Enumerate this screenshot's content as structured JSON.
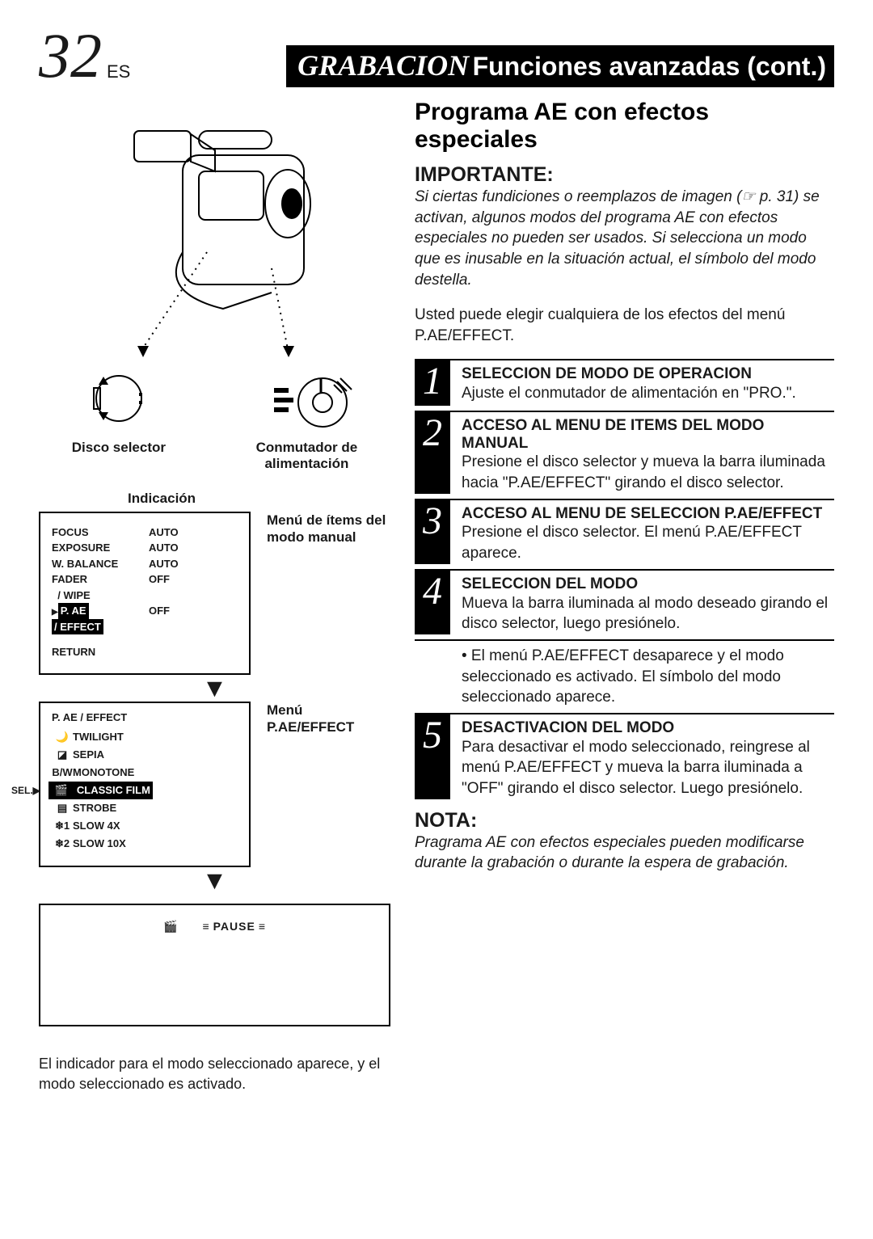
{
  "header": {
    "page_number": "32",
    "lang": "ES",
    "title_italic": "GRABACION",
    "title_bold": "Funciones avanzadas (cont.)"
  },
  "left": {
    "disco_label": "Disco selector",
    "conmutador_label": "Conmutador de\nalimentación",
    "indicacion": "Indicación",
    "manual_menu_label": "Menú de ítems del modo manual",
    "effect_menu_label": "Menú P.AE/EFFECT",
    "manual_menu": {
      "rows": [
        {
          "name": "FOCUS",
          "value": "AUTO"
        },
        {
          "name": "EXPOSURE",
          "value": "AUTO"
        },
        {
          "name": "W. BALANCE",
          "value": "AUTO"
        },
        {
          "name": "FADER / WIPE",
          "value": "OFF"
        },
        {
          "name": "P. AE / EFFECT",
          "value": "OFF",
          "highlight": true
        }
      ],
      "return": "RETURN"
    },
    "effect_menu": {
      "head": "P. AE / EFFECT",
      "sel_label": "SEL.",
      "rows": [
        {
          "icon": "🌙",
          "name": "TWILIGHT"
        },
        {
          "icon": "◪",
          "name": "SEPIA"
        },
        {
          "icon": "B/W",
          "name": "MONOTONE"
        },
        {
          "icon": "🎬",
          "name": "CLASSIC FILM",
          "selected": true
        },
        {
          "icon": "▤",
          "name": "STROBE"
        },
        {
          "icon": "❄1",
          "name": "SLOW 4X"
        },
        {
          "icon": "❄2",
          "name": "SLOW 10X"
        }
      ]
    },
    "pause": "PAUSE",
    "footnote": "El indicador para el modo seleccionado aparece, y el modo seleccionado es activado."
  },
  "right": {
    "section_title": "Programa AE con efectos especiales",
    "import_head": "IMPORTANTE:",
    "import_body": "Si ciertas fundiciones o reemplazos de imagen (☞ p. 31) se activan, algunos modos del programa AE con efectos especiales no pueden ser usados. Si selecciona un modo que es inusable en la situación actual, el símbolo del modo destella.",
    "after_import": "Usted puede elegir cualquiera de los efectos del menú P.AE/EFFECT.",
    "steps": [
      {
        "n": "1",
        "head": "SELECCION DE MODO DE OPERACION",
        "text": "Ajuste el conmutador de alimentación en \"PRO.\"."
      },
      {
        "n": "2",
        "head": "ACCESO AL MENU DE ITEMS DEL MODO MANUAL",
        "text": "Presione el disco selector y mueva la barra iluminada hacia \"P.AE/EFFECT\" girando el disco selector."
      },
      {
        "n": "3",
        "head": "ACCESO AL MENU DE SELECCION P.AE/EFFECT",
        "text": "Presione el disco selector. El menú P.AE/EFFECT aparece."
      },
      {
        "n": "4",
        "head": "SELECCION DEL MODO",
        "text": "Mueva la barra iluminada al modo deseado girando el disco selector, luego presiónelo."
      }
    ],
    "step4_sub": "El menú P.AE/EFFECT desaparece y el modo seleccionado es activado. El símbolo del modo seleccionado aparece.",
    "step5": {
      "n": "5",
      "head": "DESACTIVACION DEL MODO",
      "text": "Para desactivar el modo seleccionado, reingrese al menú P.AE/EFFECT y mueva la barra iluminada a \"OFF\" girando el disco selector. Luego presiónelo."
    },
    "nota_head": "NOTA:",
    "nota_body": "Pragrama AE con efectos especiales pueden modificarse durante la grabación o durante la espera de grabación."
  },
  "colors": {
    "text": "#1a1a1a",
    "black": "#000000",
    "white": "#ffffff"
  }
}
